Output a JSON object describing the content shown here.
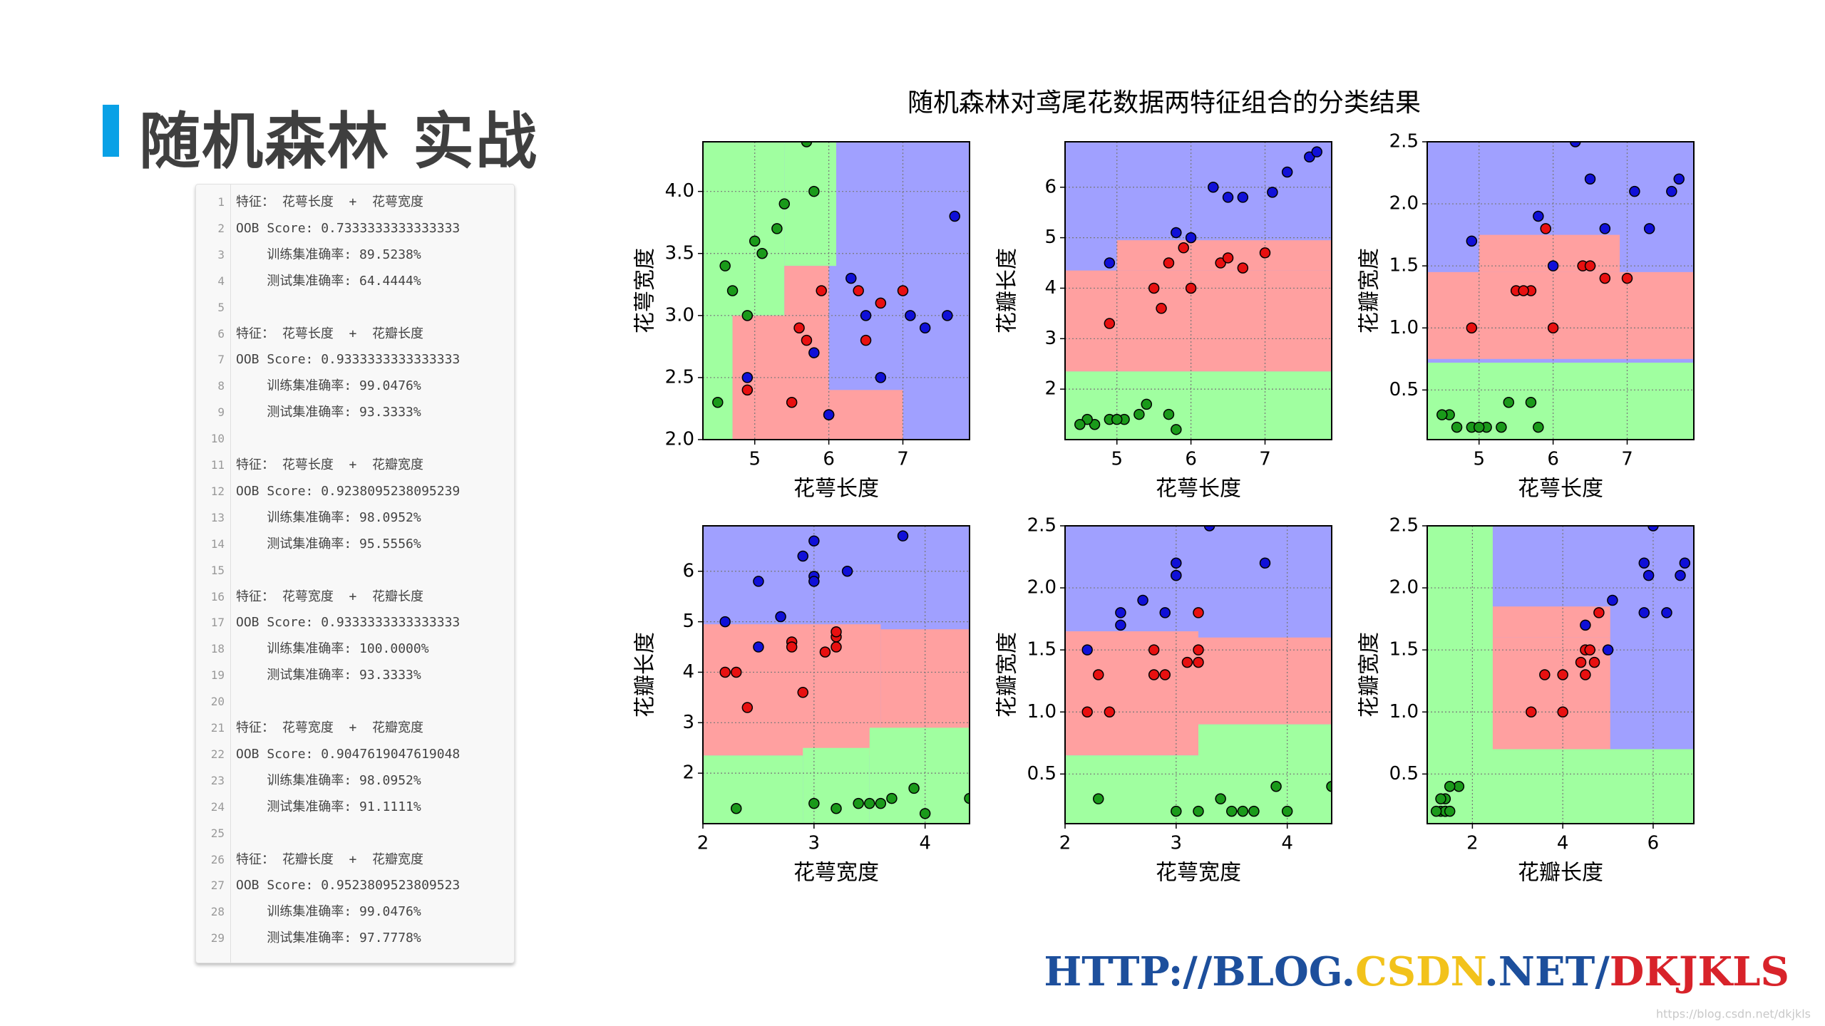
{
  "header": {
    "title": "随机森林 实战"
  },
  "code": {
    "numbers": [
      1,
      2,
      3,
      4,
      5,
      6,
      7,
      8,
      9,
      10,
      11,
      12,
      13,
      14,
      15,
      16,
      17,
      18,
      19,
      20,
      21,
      22,
      23,
      24,
      25,
      26,
      27,
      28,
      29
    ],
    "lines": [
      "特征： 花萼长度  +  花萼宽度",
      "OOB Score: 0.7333333333333333",
      "    训练集准确率: 89.5238%",
      "    测试集准确率: 64.4444%",
      null,
      "特征： 花萼长度  +  花瓣长度",
      "OOB Score: 0.9333333333333333",
      "    训练集准确率: 99.0476%",
      "    测试集准确率: 93.3333%",
      null,
      "特征： 花萼长度  +  花瓣宽度",
      "OOB Score: 0.9238095238095239",
      "    训练集准确率: 98.0952%",
      "    测试集准确率: 95.5556%",
      null,
      "特征： 花萼宽度  +  花瓣长度",
      "OOB Score: 0.9333333333333333",
      "    训练集准确率: 100.0000%",
      "    测试集准确率: 93.3333%",
      null,
      "特征： 花萼宽度  +  花瓣宽度",
      "OOB Score: 0.9047619047619048",
      "    训练集准确率: 98.0952%",
      "    测试集准确率: 91.1111%",
      null,
      "特征： 花瓣长度  +  花瓣宽度",
      "OOB Score: 0.9523809523809523",
      "    训练集准确率: 99.0476%",
      "    测试集准确率: 97.7778%"
    ]
  },
  "figure": {
    "title": "随机森林对鸢尾花数据两特征组合的分类结果"
  },
  "watermark": {
    "parts": [
      "HTTP://BLOG.",
      "CSDN",
      ".NET/",
      "DKJKLS"
    ],
    "colors": [
      "#1d4f9c",
      "#f2c21b",
      "#1d4f9c",
      "#d8232a"
    ],
    "small": "https://blog.csdn.net/dkjkls"
  },
  "chart_data": [
    {
      "type": "scatter",
      "xlabel": "花萼长度",
      "ylabel": "花萼宽度",
      "xlim": [
        4.3,
        7.9
      ],
      "ylim": [
        2.0,
        4.4
      ],
      "xticks": [
        5,
        6,
        7
      ],
      "yticks": [
        {
          "value": 2,
          "label": "2.0"
        },
        2.5,
        {
          "value": 3,
          "label": "3.0"
        },
        3.5,
        {
          "value": 4,
          "label": "4.0"
        }
      ],
      "grid": true,
      "regions": [
        {
          "color": "#a0a0ff",
          "x": [
            4.3,
            7.9
          ],
          "y": [
            2.0,
            4.4
          ]
        },
        {
          "color": "#a0ffa0",
          "x": [
            4.3,
            5.4
          ],
          "y": [
            3.0,
            4.4
          ]
        },
        {
          "color": "#a0ffa0",
          "x": [
            5.4,
            6.1
          ],
          "y": [
            3.4,
            4.4
          ]
        },
        {
          "color": "#a0ffa0",
          "x": [
            4.3,
            4.7
          ],
          "y": [
            2.0,
            3.0
          ]
        },
        {
          "color": "#ffa0a0",
          "x": [
            4.7,
            6.0
          ],
          "y": [
            2.0,
            3.0
          ]
        },
        {
          "color": "#ffa0a0",
          "x": [
            6.0,
            7.0
          ],
          "y": [
            2.0,
            2.4
          ]
        },
        {
          "color": "#ffa0a0",
          "x": [
            5.4,
            6.0
          ],
          "y": [
            3.0,
            3.4
          ]
        }
      ],
      "series": [
        {
          "color": "#1a9a1a",
          "x": [
            5.1,
            4.9,
            4.7,
            5.0,
            5.4,
            4.6,
            5.8,
            5.7,
            4.5,
            5.3
          ],
          "y": [
            3.5,
            3.0,
            3.2,
            3.6,
            3.9,
            3.4,
            4.0,
            4.4,
            2.3,
            3.7
          ]
        },
        {
          "color": "#e81010",
          "x": [
            7.0,
            6.4,
            5.5,
            6.5,
            5.7,
            4.9,
            6.0,
            5.6,
            6.7,
            5.9
          ],
          "y": [
            3.2,
            3.2,
            2.3,
            2.8,
            2.8,
            2.4,
            2.2,
            2.9,
            3.1,
            3.2
          ]
        },
        {
          "color": "#1010d8",
          "x": [
            6.3,
            5.8,
            7.1,
            6.5,
            7.6,
            4.9,
            7.3,
            6.7,
            7.7,
            6.0
          ],
          "y": [
            3.3,
            2.7,
            3.0,
            3.0,
            3.0,
            2.5,
            2.9,
            2.5,
            3.8,
            2.2
          ]
        }
      ]
    },
    {
      "type": "scatter",
      "xlabel": "花萼长度",
      "ylabel": "花瓣长度",
      "xlim": [
        4.3,
        7.9
      ],
      "ylim": [
        1.0,
        6.9
      ],
      "xticks": [
        5,
        6,
        7
      ],
      "yticks": [
        2,
        3,
        4,
        5,
        6
      ],
      "grid": true,
      "regions": [
        {
          "color": "#a0a0ff",
          "x": [
            4.3,
            7.9
          ],
          "y": [
            1.0,
            6.9
          ]
        },
        {
          "color": "#ffa0a0",
          "x": [
            4.3,
            7.9
          ],
          "y": [
            2.35,
            4.35
          ]
        },
        {
          "color": "#ffa0a0",
          "x": [
            5.0,
            7.9
          ],
          "y": [
            4.35,
            4.95
          ]
        },
        {
          "color": "#a0ffa0",
          "x": [
            4.3,
            7.9
          ],
          "y": [
            1.0,
            2.35
          ]
        }
      ],
      "series": [
        {
          "color": "#1a9a1a",
          "x": [
            5.1,
            4.9,
            4.7,
            5.0,
            5.4,
            4.6,
            5.8,
            5.7,
            4.5,
            5.3
          ],
          "y": [
            1.4,
            1.4,
            1.3,
            1.4,
            1.7,
            1.4,
            1.2,
            1.5,
            1.3,
            1.5
          ]
        },
        {
          "color": "#e81010",
          "x": [
            7.0,
            6.4,
            5.5,
            6.5,
            5.7,
            4.9,
            6.0,
            5.6,
            6.7,
            5.9
          ],
          "y": [
            4.7,
            4.5,
            4.0,
            4.6,
            4.5,
            3.3,
            4.0,
            3.6,
            4.4,
            4.8
          ]
        },
        {
          "color": "#1010d8",
          "x": [
            6.3,
            5.8,
            7.1,
            6.5,
            7.6,
            4.9,
            7.3,
            6.7,
            7.7,
            6.0
          ],
          "y": [
            6.0,
            5.1,
            5.9,
            5.8,
            6.6,
            4.5,
            6.3,
            5.8,
            6.7,
            5.0
          ]
        }
      ]
    },
    {
      "type": "scatter",
      "xlabel": "花萼长度",
      "ylabel": "花瓣宽度",
      "xlim": [
        4.3,
        7.9
      ],
      "ylim": [
        0.1,
        2.5
      ],
      "xticks": [
        5,
        6,
        7
      ],
      "yticks": [
        0.5,
        {
          "value": 1,
          "label": "1.0"
        },
        1.5,
        {
          "value": 2,
          "label": "2.0"
        },
        2.5
      ],
      "grid": true,
      "regions": [
        {
          "color": "#a0a0ff",
          "x": [
            4.3,
            7.9
          ],
          "y": [
            0.1,
            2.5
          ]
        },
        {
          "color": "#ffa0a0",
          "x": [
            4.3,
            7.9
          ],
          "y": [
            0.75,
            1.45
          ]
        },
        {
          "color": "#ffa0a0",
          "x": [
            5.0,
            6.9
          ],
          "y": [
            1.45,
            1.75
          ]
        },
        {
          "color": "#a0ffa0",
          "x": [
            4.3,
            7.9
          ],
          "y": [
            0.1,
            0.72
          ]
        }
      ],
      "series": [
        {
          "color": "#1a9a1a",
          "x": [
            5.1,
            4.9,
            4.7,
            5.0,
            5.4,
            4.6,
            5.8,
            5.7,
            4.5,
            5.3
          ],
          "y": [
            0.2,
            0.2,
            0.2,
            0.2,
            0.4,
            0.3,
            0.2,
            0.4,
            0.3,
            0.2
          ]
        },
        {
          "color": "#e81010",
          "x": [
            7.0,
            6.4,
            5.5,
            6.5,
            5.7,
            4.9,
            6.0,
            5.6,
            6.7,
            5.9
          ],
          "y": [
            1.4,
            1.5,
            1.3,
            1.5,
            1.3,
            1.0,
            1.0,
            1.3,
            1.4,
            1.8
          ]
        },
        {
          "color": "#1010d8",
          "x": [
            6.3,
            5.8,
            7.1,
            6.5,
            7.6,
            4.9,
            7.3,
            6.7,
            7.7,
            6.0
          ],
          "y": [
            2.5,
            1.9,
            2.1,
            2.2,
            2.1,
            1.7,
            1.8,
            1.8,
            2.2,
            1.5
          ]
        }
      ]
    },
    {
      "type": "scatter",
      "xlabel": "花萼宽度",
      "ylabel": "花瓣长度",
      "xlim": [
        2.0,
        4.4
      ],
      "ylim": [
        1.0,
        6.9
      ],
      "xticks": [
        2,
        3,
        4
      ],
      "yticks": [
        2,
        3,
        4,
        5,
        6
      ],
      "grid": true,
      "regions": [
        {
          "color": "#a0a0ff",
          "x": [
            2.0,
            4.4
          ],
          "y": [
            1.0,
            6.9
          ]
        },
        {
          "color": "#ffa0a0",
          "x": [
            2.0,
            3.6
          ],
          "y": [
            2.35,
            4.95
          ]
        },
        {
          "color": "#ffa0a0",
          "x": [
            3.6,
            4.4
          ],
          "y": [
            2.35,
            4.85
          ]
        },
        {
          "color": "#a0ffa0",
          "x": [
            2.0,
            2.9
          ],
          "y": [
            1.0,
            2.35
          ]
        },
        {
          "color": "#a0ffa0",
          "x": [
            2.9,
            3.5
          ],
          "y": [
            1.0,
            2.5
          ]
        },
        {
          "color": "#a0ffa0",
          "x": [
            3.5,
            4.4
          ],
          "y": [
            1.0,
            2.9
          ]
        }
      ],
      "series": [
        {
          "color": "#1a9a1a",
          "x": [
            3.5,
            3.0,
            3.2,
            3.6,
            3.9,
            3.4,
            4.0,
            4.4,
            2.3,
            3.7
          ],
          "y": [
            1.4,
            1.4,
            1.3,
            1.4,
            1.7,
            1.4,
            1.2,
            1.5,
            1.3,
            1.5
          ]
        },
        {
          "color": "#e81010",
          "x": [
            3.2,
            3.2,
            2.3,
            2.8,
            2.8,
            2.4,
            2.2,
            2.9,
            3.1,
            3.2
          ],
          "y": [
            4.7,
            4.5,
            4.0,
            4.6,
            4.5,
            3.3,
            4.0,
            3.6,
            4.4,
            4.8
          ]
        },
        {
          "color": "#1010d8",
          "x": [
            3.3,
            2.7,
            3.0,
            3.0,
            3.0,
            2.5,
            2.9,
            2.5,
            3.8,
            2.2
          ],
          "y": [
            6.0,
            5.1,
            5.9,
            5.8,
            6.6,
            4.5,
            6.3,
            5.8,
            6.7,
            5.0
          ]
        }
      ]
    },
    {
      "type": "scatter",
      "xlabel": "花萼宽度",
      "ylabel": "花瓣宽度",
      "xlim": [
        2.0,
        4.4
      ],
      "ylim": [
        0.1,
        2.5
      ],
      "xticks": [
        2,
        3,
        4
      ],
      "yticks": [
        0.5,
        {
          "value": 1,
          "label": "1.0"
        },
        1.5,
        {
          "value": 2,
          "label": "2.0"
        },
        2.5
      ],
      "grid": true,
      "regions": [
        {
          "color": "#a0a0ff",
          "x": [
            2.0,
            4.4
          ],
          "y": [
            0.1,
            2.5
          ]
        },
        {
          "color": "#ffa0a0",
          "x": [
            2.0,
            3.2
          ],
          "y": [
            0.65,
            1.65
          ]
        },
        {
          "color": "#ffa0a0",
          "x": [
            3.2,
            4.4
          ],
          "y": [
            0.9,
            1.6
          ]
        },
        {
          "color": "#a0ffa0",
          "x": [
            2.0,
            3.2
          ],
          "y": [
            0.1,
            0.65
          ]
        },
        {
          "color": "#a0ffa0",
          "x": [
            3.2,
            4.4
          ],
          "y": [
            0.1,
            0.9
          ]
        }
      ],
      "series": [
        {
          "color": "#1a9a1a",
          "x": [
            3.5,
            3.0,
            3.2,
            3.6,
            3.9,
            3.4,
            4.0,
            4.4,
            2.3,
            3.7
          ],
          "y": [
            0.2,
            0.2,
            0.2,
            0.2,
            0.4,
            0.3,
            0.2,
            0.4,
            0.3,
            0.2
          ]
        },
        {
          "color": "#e81010",
          "x": [
            3.2,
            3.2,
            2.3,
            2.8,
            2.8,
            2.4,
            2.2,
            2.9,
            3.1,
            3.2
          ],
          "y": [
            1.4,
            1.5,
            1.3,
            1.5,
            1.3,
            1.0,
            1.0,
            1.3,
            1.4,
            1.8
          ]
        },
        {
          "color": "#1010d8",
          "x": [
            3.3,
            2.7,
            3.0,
            3.0,
            3.0,
            2.5,
            2.9,
            2.5,
            3.8,
            2.2
          ],
          "y": [
            2.5,
            1.9,
            2.1,
            2.2,
            2.1,
            1.7,
            1.8,
            1.8,
            2.2,
            1.5
          ]
        }
      ]
    },
    {
      "type": "scatter",
      "xlabel": "花瓣长度",
      "ylabel": "花瓣宽度",
      "xlim": [
        1.0,
        6.9
      ],
      "ylim": [
        0.1,
        2.5
      ],
      "xticks": [
        2,
        4,
        6
      ],
      "yticks": [
        0.5,
        {
          "value": 1,
          "label": "1.0"
        },
        1.5,
        {
          "value": 2,
          "label": "2.0"
        },
        2.5
      ],
      "grid": true,
      "regions": [
        {
          "color": "#a0a0ff",
          "x": [
            1.0,
            6.9
          ],
          "y": [
            0.1,
            2.5
          ]
        },
        {
          "color": "#ffa0a0",
          "x": [
            1.0,
            5.05
          ],
          "y": [
            0.7,
            1.6
          ]
        },
        {
          "color": "#ffa0a0",
          "x": [
            2.45,
            5.05
          ],
          "y": [
            1.6,
            1.85
          ]
        },
        {
          "color": "#a0ffa0",
          "x": [
            1.0,
            2.45
          ],
          "y": [
            0.1,
            2.5
          ]
        },
        {
          "color": "#a0ffa0",
          "x": [
            1.0,
            6.9
          ],
          "y": [
            0.1,
            0.7
          ]
        }
      ],
      "series": [
        {
          "color": "#1a9a1a",
          "x": [
            1.4,
            1.4,
            1.3,
            1.4,
            1.7,
            1.4,
            1.2,
            1.5,
            1.3,
            1.5
          ],
          "y": [
            0.2,
            0.2,
            0.2,
            0.2,
            0.4,
            0.3,
            0.2,
            0.4,
            0.3,
            0.2
          ]
        },
        {
          "color": "#e81010",
          "x": [
            4.7,
            4.5,
            4.0,
            4.6,
            4.5,
            3.3,
            4.0,
            3.6,
            4.4,
            4.8
          ],
          "y": [
            1.4,
            1.5,
            1.3,
            1.5,
            1.3,
            1.0,
            1.0,
            1.3,
            1.4,
            1.8
          ]
        },
        {
          "color": "#1010d8",
          "x": [
            6.0,
            5.1,
            5.9,
            5.8,
            6.6,
            4.5,
            6.3,
            5.8,
            6.7,
            5.0
          ],
          "y": [
            2.5,
            1.9,
            2.1,
            2.2,
            2.1,
            1.7,
            1.8,
            1.8,
            2.2,
            1.5
          ]
        }
      ]
    }
  ]
}
